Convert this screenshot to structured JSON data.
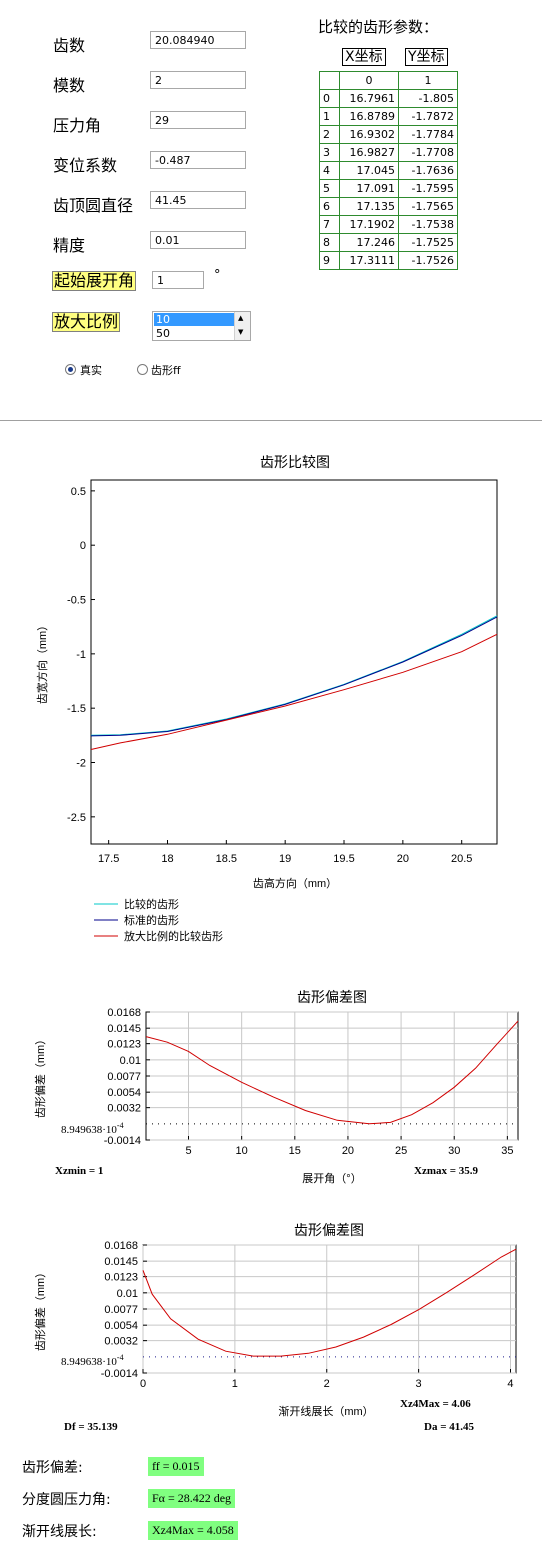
{
  "params": [
    {
      "label": "齿数",
      "value": "20.084940"
    },
    {
      "label": "模数",
      "value": "2"
    },
    {
      "label": "压力角",
      "value": "29"
    },
    {
      "label": "变位系数",
      "value": "-0.487"
    },
    {
      "label": "齿顶圆直径",
      "value": "41.45"
    },
    {
      "label": "精度",
      "value": "0.01"
    }
  ],
  "start_angle": {
    "label": "起始展开角",
    "value": "1",
    "unit": "°"
  },
  "zoom": {
    "label": "放大比例",
    "options": [
      "10",
      "50"
    ],
    "selected": "10"
  },
  "radios": [
    {
      "label": "真实",
      "checked": true
    },
    {
      "label": "齿形ff",
      "checked": false
    }
  ],
  "compare_table": {
    "title": "比较的齿形参数：",
    "x_header": "X坐标",
    "y_header": "Y坐标",
    "col_headers": [
      "0",
      "1"
    ],
    "rows": [
      [
        "0",
        "16.7961",
        "-1.805"
      ],
      [
        "1",
        "16.8789",
        "-1.7872"
      ],
      [
        "2",
        "16.9302",
        "-1.7784"
      ],
      [
        "3",
        "16.9827",
        "-1.7708"
      ],
      [
        "4",
        "17.045",
        "-1.7636"
      ],
      [
        "5",
        "17.091",
        "-1.7595"
      ],
      [
        "6",
        "17.135",
        "-1.7565"
      ],
      [
        "7",
        "17.1902",
        "-1.7538"
      ],
      [
        "8",
        "17.246",
        "-1.7525"
      ],
      [
        "9",
        "17.3111",
        "-1.7526"
      ]
    ]
  },
  "chart_data": [
    {
      "type": "line",
      "title": "齿形比较图",
      "xlabel": "齿高方向（mm）",
      "ylabel": "齿宽方向（mm）",
      "xlim": [
        17.35,
        20.8
      ],
      "ylim": [
        -2.75,
        0.6
      ],
      "xticks": [
        "17.5",
        "18",
        "18.5",
        "19",
        "19.5",
        "20",
        "20.5"
      ],
      "yticks": [
        "0.5",
        "0",
        "-0.5",
        "-1",
        "-1.5",
        "-2",
        "-2.5"
      ],
      "series": [
        {
          "name": "比较的齿形",
          "color": "#00c8c8",
          "x": [
            17.35,
            17.6,
            18.0,
            18.5,
            19.0,
            19.5,
            20.0,
            20.5,
            20.8
          ],
          "y": [
            -1.75,
            -1.745,
            -1.71,
            -1.6,
            -1.46,
            -1.28,
            -1.07,
            -0.82,
            -0.65
          ]
        },
        {
          "name": "标准的齿形",
          "color": "#00008b",
          "x": [
            17.35,
            17.6,
            18.0,
            18.5,
            19.0,
            19.5,
            20.0,
            20.5,
            20.8
          ],
          "y": [
            -1.755,
            -1.75,
            -1.715,
            -1.605,
            -1.465,
            -1.285,
            -1.075,
            -0.83,
            -0.66
          ]
        },
        {
          "name": "放大比例的比较齿形",
          "color": "#d00000",
          "x": [
            17.35,
            17.6,
            18.0,
            18.5,
            19.0,
            19.5,
            20.0,
            20.5,
            20.8
          ],
          "y": [
            -1.88,
            -1.82,
            -1.74,
            -1.61,
            -1.48,
            -1.33,
            -1.17,
            -0.98,
            -0.82
          ]
        }
      ]
    },
    {
      "type": "line",
      "title": "齿形偏差图",
      "xlabel": "展开角（°）",
      "ylabel": "齿形偏差（mm）",
      "xlim": [
        1,
        36
      ],
      "ylim": [
        -0.0014,
        0.0168
      ],
      "xticks": [
        "5",
        "10",
        "15",
        "20",
        "25",
        "30",
        "35"
      ],
      "yticks": [
        "0.0168",
        "0.0145",
        "0.0123",
        "0.01",
        "0.0077",
        "0.0054",
        "0.0032",
        "-0.0014"
      ],
      "marker_label": "8.949638·10",
      "marker_exp": "-4",
      "marker_value": 0.000894964,
      "left_note": "Xzmin = 1",
      "right_note": "Xzmax = 35.9",
      "series": [
        {
          "color": "#d00000",
          "x": [
            1,
            3,
            5,
            7,
            10,
            13,
            16,
            19,
            22,
            24,
            26,
            28,
            30,
            32,
            34,
            36
          ],
          "y": [
            0.0133,
            0.0125,
            0.0112,
            0.0092,
            0.0068,
            0.0047,
            0.0028,
            0.0014,
            0.0009,
            0.0011,
            0.0022,
            0.0039,
            0.0061,
            0.0088,
            0.0122,
            0.0155
          ]
        }
      ]
    },
    {
      "type": "line",
      "title": "齿形偏差图",
      "xlabel": "渐开线展长（mm）",
      "ylabel": "齿形偏差（mm）",
      "xlim": [
        0,
        4.06
      ],
      "ylim": [
        -0.0014,
        0.0168
      ],
      "xticks": [
        "0",
        "1",
        "2",
        "3",
        "4"
      ],
      "yticks": [
        "0.0168",
        "0.0145",
        "0.0123",
        "0.01",
        "0.0077",
        "0.0054",
        "0.0032",
        "-0.0014"
      ],
      "marker_label": "8.949638·10",
      "marker_exp": "-4",
      "marker_value": 0.000894964,
      "right_note": "Xz4Max = 4.06",
      "df_note": "Df = 35.139",
      "da_note": "Da = 41.45",
      "series": [
        {
          "color": "#d00000",
          "x": [
            0,
            0.1,
            0.3,
            0.6,
            0.9,
            1.2,
            1.5,
            1.8,
            2.1,
            2.4,
            2.7,
            3.0,
            3.3,
            3.6,
            3.9,
            4.06
          ],
          "y": [
            0.0132,
            0.0098,
            0.0063,
            0.0034,
            0.0017,
            0.001,
            0.001,
            0.0014,
            0.0023,
            0.0037,
            0.0055,
            0.0076,
            0.01,
            0.0125,
            0.0151,
            0.0162
          ]
        }
      ]
    }
  ],
  "results": [
    {
      "label": "齿形偏差:",
      "value": "ff = 0.015"
    },
    {
      "label": "分度圆压力角:",
      "value": "Fα = 28.422 deg"
    },
    {
      "label": "渐开线展长:",
      "value": "Xz4Max = 4.058"
    }
  ]
}
